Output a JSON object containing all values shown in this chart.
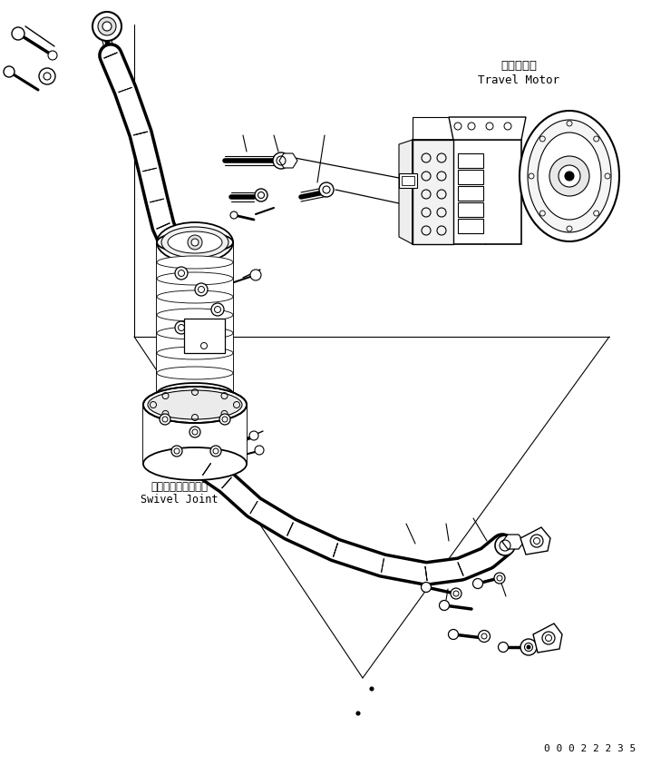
{
  "bg_color": "#ffffff",
  "line_color": "#000000",
  "label_travel_motor_jp": "走行モータ",
  "label_travel_motor_en": "Travel Motor",
  "label_swivel_joint_jp": "スイベルジョイント",
  "label_swivel_joint_en": "Swivel Joint",
  "part_number": "0 0 0 2 2 2 3 5",
  "figsize": [
    7.18,
    8.45
  ],
  "dpi": 100
}
